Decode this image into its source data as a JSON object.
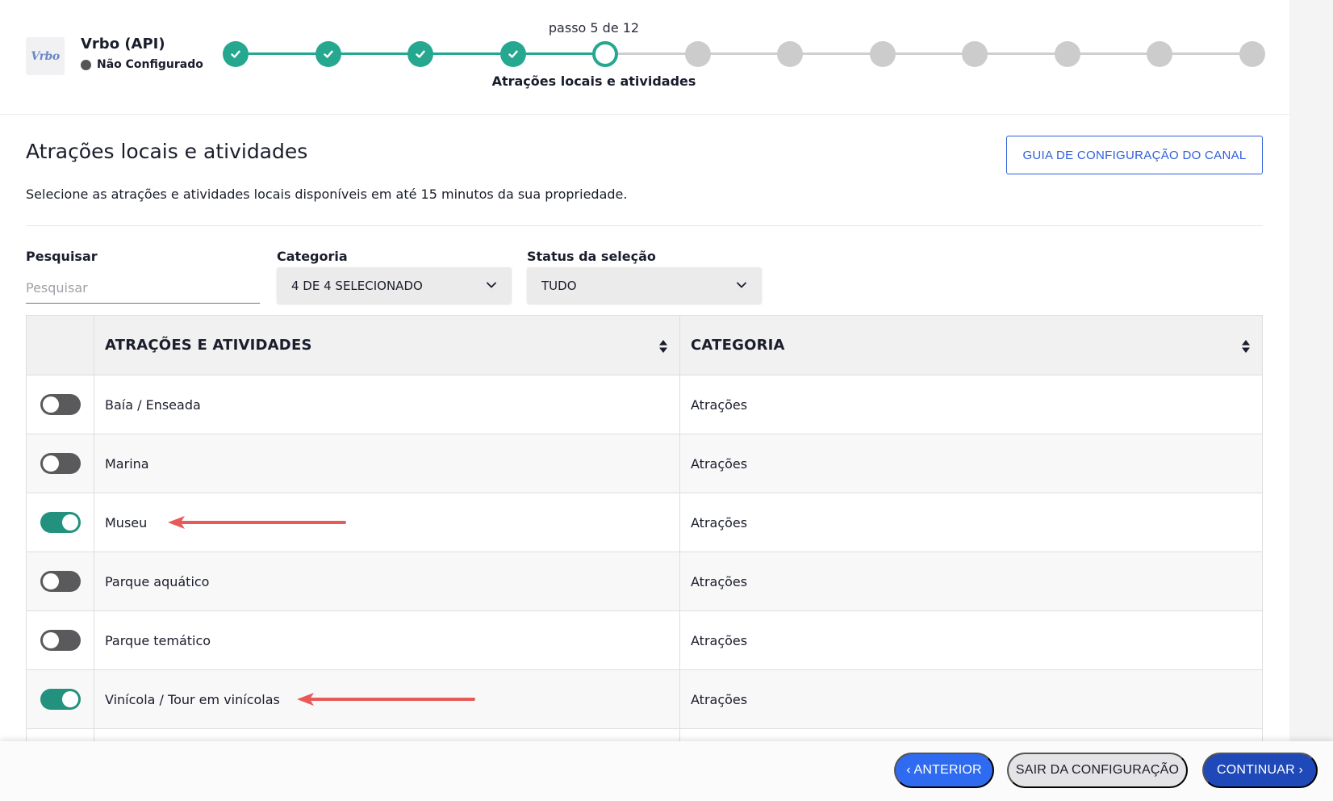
{
  "header": {
    "logo_text": "Vrbo",
    "channel_name": "Vrbo (API)",
    "channel_status": "Não Configurado",
    "step_counter": "passo 5 de 12",
    "current_step_name": "Atrações locais e atividades",
    "steps_total": 12,
    "steps_completed": 4,
    "current_step": 5
  },
  "section": {
    "title": "Atrações locais e atividades",
    "guide_button": "GUIA DE CONFIGURAÇÃO DO CANAL",
    "description": "Selecione as atrações e atividades locais disponíveis em até 15 minutos da sua propriedade."
  },
  "filters": {
    "search_label": "Pesquisar",
    "search_placeholder": "Pesquisar",
    "category_label": "Categoria",
    "category_value": "4 DE 4 SELECIONADO",
    "status_label": "Status da seleção",
    "status_value": "TUDO"
  },
  "table": {
    "columns": [
      "ATRAÇÕES E ATIVIDADES",
      "CATEGORIA"
    ],
    "rows": [
      {
        "name": "Baía / Enseada",
        "category": "Atrações",
        "enabled": false
      },
      {
        "name": "Marina",
        "category": "Atrações",
        "enabled": false
      },
      {
        "name": "Museu",
        "category": "Atrações",
        "enabled": true
      },
      {
        "name": "Parque aquático",
        "category": "Atrações",
        "enabled": false
      },
      {
        "name": "Parque temático",
        "category": "Atrações",
        "enabled": false
      },
      {
        "name": "Vinícola / Tour em vinícolas",
        "category": "Atrações",
        "enabled": true
      }
    ]
  },
  "footer": {
    "prev_label": "‹ ANTERIOR",
    "exit_label": "SAIR DA CONFIGURAÇÃO",
    "next_label": "CONTINUAR ›"
  },
  "colors": {
    "accent_green": "#26a890",
    "primary_blue": "#2f6bf0",
    "dark_blue": "#1f49b8",
    "annotation_red": "#e85a5a"
  }
}
